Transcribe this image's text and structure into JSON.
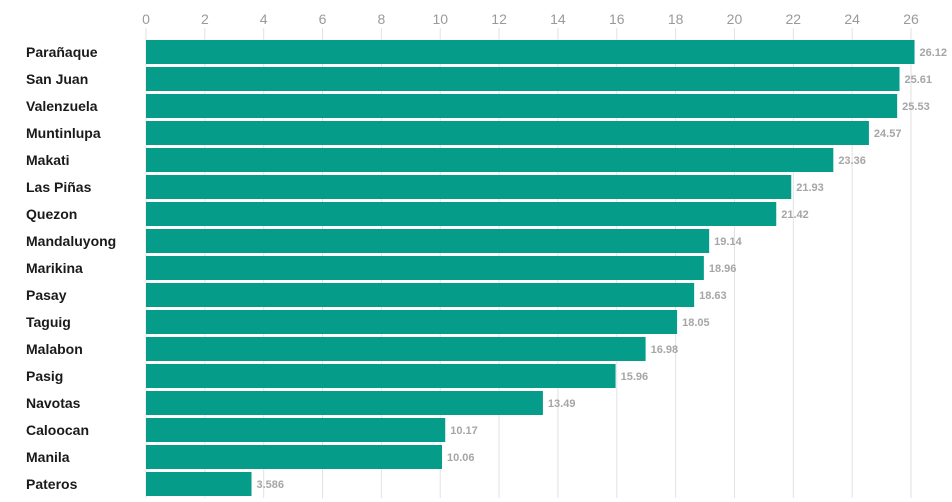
{
  "chart_data": {
    "type": "bar",
    "orientation": "horizontal",
    "categories": [
      "Parañaque",
      "San Juan",
      "Valenzuela",
      "Muntinlupa",
      "Makati",
      "Las Piñas",
      "Quezon",
      "Mandaluyong",
      "Marikina",
      "Pasay",
      "Taguig",
      "Malabon",
      "Pasig",
      "Navotas",
      "Caloocan",
      "Manila",
      "Pateros"
    ],
    "values": [
      26.12,
      25.61,
      25.53,
      24.57,
      23.36,
      21.93,
      21.42,
      19.14,
      18.96,
      18.63,
      18.05,
      16.98,
      15.96,
      13.49,
      10.17,
      10.06,
      3.586
    ],
    "value_labels": [
      "26.12",
      "25.61",
      "25.53",
      "24.57",
      "23.36",
      "21.93",
      "21.42",
      "19.14",
      "18.96",
      "18.63",
      "18.05",
      "16.98",
      "15.96",
      "13.49",
      "10.17",
      "10.06",
      "3.586"
    ],
    "xticks": [
      "0",
      "2",
      "4",
      "6",
      "8",
      "10",
      "12",
      "14",
      "16",
      "18",
      "20",
      "22",
      "24",
      "26"
    ],
    "xlim": [
      0,
      26
    ],
    "axis_position": "top",
    "grid": true,
    "bar_color": "#069c8a"
  }
}
